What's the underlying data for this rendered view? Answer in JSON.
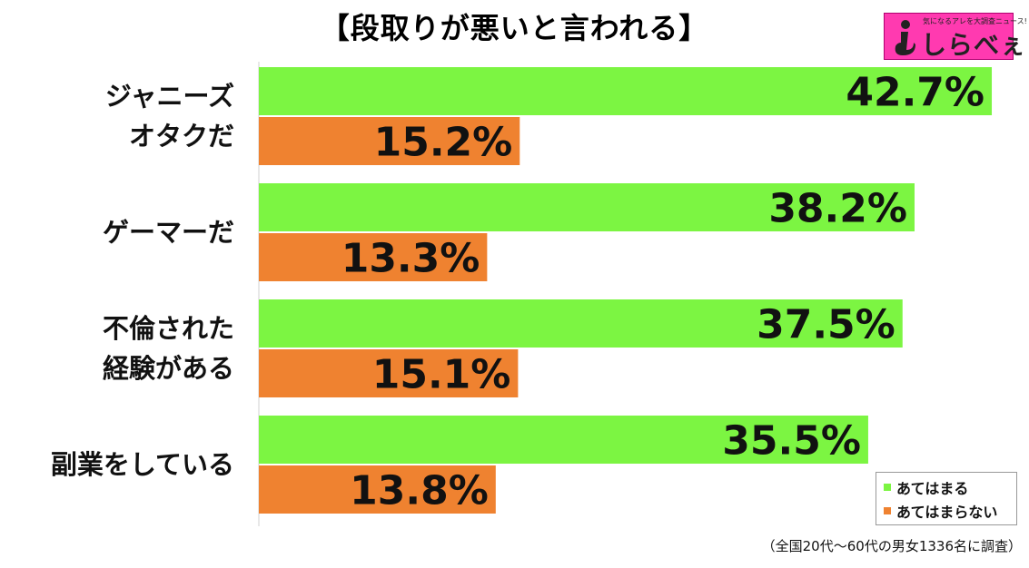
{
  "title": "【段取りが悪いと言われる】",
  "logo": {
    "tagline": "気になるアレを大調査ニュース!",
    "text": "しらべぇ",
    "color": "#ff3ab0"
  },
  "chart_data": {
    "type": "bar",
    "orientation": "horizontal",
    "categories": [
      [
        "ジャニーズ",
        "オタクだ"
      ],
      [
        "ゲーマーだ"
      ],
      [
        "不倫された",
        "経験がある"
      ],
      [
        "副業をしている"
      ]
    ],
    "series": [
      {
        "name": "あてはまる",
        "color": "#7cf542",
        "values": [
          42.7,
          38.2,
          37.5,
          35.5
        ]
      },
      {
        "name": "あてはまらない",
        "color": "#ef8230",
        "values": [
          15.2,
          13.3,
          15.1,
          13.8
        ]
      }
    ],
    "value_suffix": "%",
    "xlim": [
      0,
      45
    ],
    "legend_position": "bottom-right",
    "grid": false
  },
  "footnote": "（全国20代～60代の男女1336名に調査）"
}
